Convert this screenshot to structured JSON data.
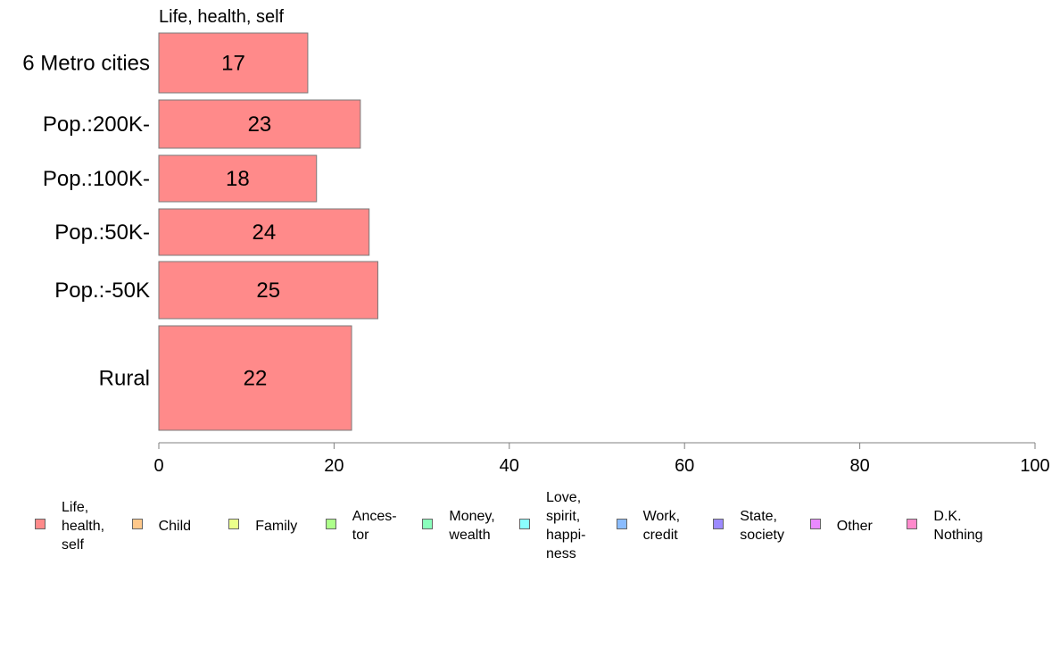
{
  "chart_data": {
    "type": "bar",
    "orientation": "horizontal",
    "stacked": true,
    "title": "Life, health, self",
    "categories": [
      "6 Metro cities",
      "Pop.:200K-",
      "Pop.:100K-",
      "Pop.:50K-",
      "Pop.:-50K",
      "Rural"
    ],
    "series": [
      {
        "name": "Life, health, self",
        "values": [
          17,
          23,
          18,
          24,
          25,
          22
        ],
        "color": "#FF8A8A"
      }
    ],
    "xlim": [
      0,
      100
    ],
    "xticks": [
      "0",
      "20",
      "40",
      "60",
      "80",
      "100"
    ],
    "grid": false,
    "legend_position": "bottom"
  },
  "legend": [
    {
      "label": "Life,\nhealth,\nself",
      "color": "#FF8A8A"
    },
    {
      "label": "Child",
      "color": "#FFC88A"
    },
    {
      "label": "Family",
      "color": "#EBFF8A"
    },
    {
      "label": "Ances-\ntor",
      "color": "#ADFF8A"
    },
    {
      "label": "Money,\nwealth",
      "color": "#8AFFBC"
    },
    {
      "label": "Love,\nspirit,\nhappi-\nness",
      "color": "#8AFFFF"
    },
    {
      "label": "Work,\ncredit",
      "color": "#8ABCFF"
    },
    {
      "label": "State,\nsociety",
      "color": "#9C8AFF"
    },
    {
      "label": "Other",
      "color": "#E98AFF"
    },
    {
      "label": "D.K.\nNothing",
      "color": "#FF8ACC"
    }
  ]
}
